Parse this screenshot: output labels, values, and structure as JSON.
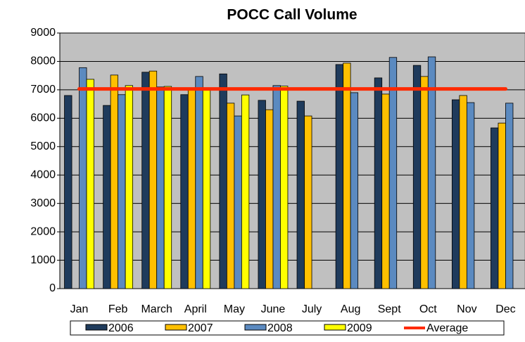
{
  "chart_data": {
    "type": "bar",
    "title": "POCC Call Volume",
    "categories": [
      "Jan",
      "Feb",
      "March",
      "April",
      "May",
      "June",
      "July",
      "Aug",
      "Sept",
      "Oct",
      "Nov",
      "Dec"
    ],
    "series": [
      {
        "name": "2006",
        "color": "#1f3b5c",
        "values": [
          6800,
          6450,
          7620,
          6830,
          7560,
          6630,
          6600,
          7890,
          7420,
          7860,
          6650,
          5660
        ]
      },
      {
        "name": "2007",
        "color": "#ffc000",
        "values": [
          null,
          7520,
          7660,
          7000,
          6530,
          6300,
          6080,
          7940,
          6850,
          7470,
          6800,
          5830
        ]
      },
      {
        "name": "2008",
        "color": "#5b8ac0",
        "values": [
          7780,
          6830,
          7100,
          7470,
          6080,
          7150,
          null,
          6900,
          8140,
          8160,
          6550,
          6530
        ]
      },
      {
        "name": "2009",
        "color": "#ffff00",
        "values": [
          7370,
          7150,
          7120,
          7000,
          6820,
          7130,
          null,
          null,
          null,
          null,
          null,
          null
        ]
      },
      {
        "name": "Average",
        "type": "line",
        "color": "#ff2a00",
        "values": [
          7030,
          7030,
          7030,
          7030,
          7030,
          7030,
          7030,
          7030,
          7030,
          7030,
          7030,
          7030
        ]
      }
    ],
    "ylim": [
      0,
      9000
    ],
    "yticks": [
      0,
      1000,
      2000,
      3000,
      4000,
      5000,
      6000,
      7000,
      8000,
      9000
    ],
    "grid": true
  }
}
